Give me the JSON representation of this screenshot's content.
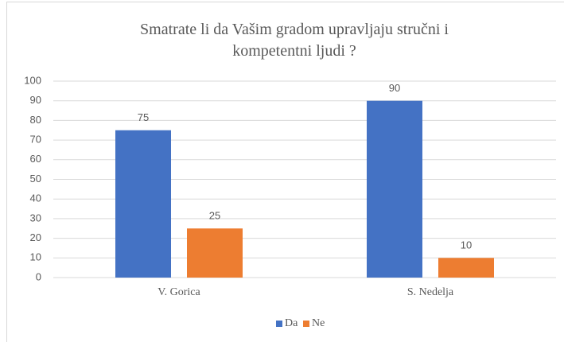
{
  "chart_data": {
    "type": "bar",
    "title": "Smatrate li da Vašim gradom upravljaju stručni i kompetentni ljudi ?",
    "categories": [
      "V. Gorica",
      "S. Nedelja"
    ],
    "series": [
      {
        "name": "Da",
        "color": "#4472c4",
        "values": [
          75,
          90
        ]
      },
      {
        "name": "Ne",
        "color": "#ed7d31",
        "values": [
          25,
          10
        ]
      }
    ],
    "ylim": [
      0,
      100
    ],
    "yticks": [
      0,
      10,
      20,
      30,
      40,
      50,
      60,
      70,
      80,
      90,
      100
    ],
    "grid": true,
    "legend": "bottom"
  }
}
